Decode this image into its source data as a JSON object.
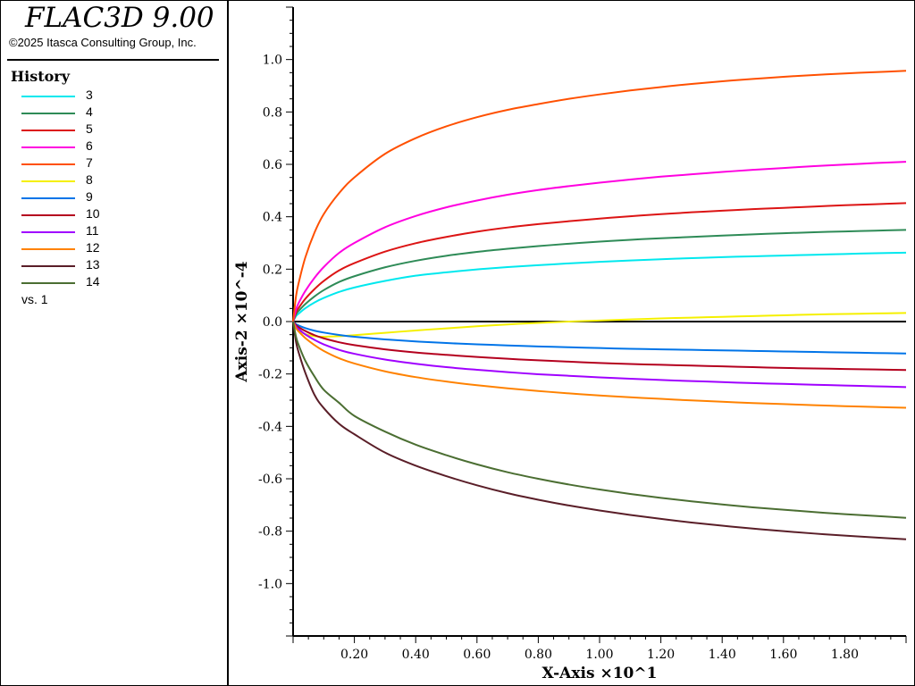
{
  "app": {
    "title": "FLAC3D 9.00",
    "copyright": "©2025 Itasca Consulting Group, Inc."
  },
  "legend": {
    "title": "History",
    "vs_label": "vs. 1"
  },
  "chart_data": {
    "type": "line",
    "xlabel": "X-Axis ×10^1",
    "ylabel": "Axis-2 ×10^-4",
    "xlim": [
      0,
      2.0
    ],
    "ylim": [
      -1.2,
      1.2
    ],
    "x_ticks": [
      "0.20",
      "0.40",
      "0.60",
      "0.80",
      "1.00",
      "1.20",
      "1.40",
      "1.60",
      "1.80"
    ],
    "y_ticks": [
      "1.0",
      "0.8",
      "0.6",
      "0.4",
      "0.2",
      "0.0",
      "-0.2",
      "-0.4",
      "-0.6",
      "-0.8",
      "-1.0"
    ],
    "x": [
      0,
      0.01,
      0.02,
      0.04,
      0.07,
      0.1,
      0.15,
      0.2,
      0.3,
      0.4,
      0.5,
      0.6,
      0.7,
      0.8,
      0.9,
      1.0,
      1.1,
      1.2,
      1.3,
      1.4,
      1.5,
      1.6,
      1.7,
      1.8,
      1.9,
      2.0
    ],
    "series": [
      {
        "name": "3",
        "color": "#00e8ee",
        "values": [
          0,
          0.021,
          0.032,
          0.051,
          0.073,
          0.09,
          0.113,
          0.13,
          0.155,
          0.175,
          0.188,
          0.199,
          0.208,
          0.215,
          0.222,
          0.228,
          0.233,
          0.238,
          0.242,
          0.246,
          0.249,
          0.252,
          0.255,
          0.258,
          0.261,
          0.263
        ]
      },
      {
        "name": "4",
        "color": "#2e8b57",
        "values": [
          0,
          0.028,
          0.043,
          0.067,
          0.096,
          0.12,
          0.151,
          0.173,
          0.207,
          0.232,
          0.251,
          0.266,
          0.278,
          0.288,
          0.297,
          0.305,
          0.312,
          0.318,
          0.323,
          0.328,
          0.333,
          0.337,
          0.341,
          0.344,
          0.347,
          0.35
        ]
      },
      {
        "name": "5",
        "color": "#dc1414",
        "values": [
          0,
          0.036,
          0.055,
          0.087,
          0.124,
          0.155,
          0.195,
          0.223,
          0.267,
          0.299,
          0.323,
          0.343,
          0.359,
          0.372,
          0.383,
          0.393,
          0.402,
          0.41,
          0.417,
          0.423,
          0.429,
          0.434,
          0.439,
          0.444,
          0.448,
          0.452
        ]
      },
      {
        "name": "6",
        "color": "#ff00e0",
        "values": [
          0,
          0.048,
          0.075,
          0.117,
          0.167,
          0.208,
          0.262,
          0.3,
          0.36,
          0.403,
          0.436,
          0.462,
          0.484,
          0.502,
          0.517,
          0.53,
          0.542,
          0.553,
          0.562,
          0.571,
          0.579,
          0.586,
          0.593,
          0.599,
          0.605,
          0.61
        ]
      },
      {
        "name": "7",
        "color": "#ff5000",
        "values": [
          0,
          0.1,
          0.156,
          0.245,
          0.34,
          0.41,
          0.49,
          0.55,
          0.64,
          0.7,
          0.745,
          0.78,
          0.808,
          0.83,
          0.85,
          0.867,
          0.882,
          0.895,
          0.907,
          0.917,
          0.926,
          0.934,
          0.941,
          0.947,
          0.952,
          0.957
        ]
      },
      {
        "name": "8",
        "color": "#f5f000",
        "values": [
          0,
          -0.02,
          -0.035,
          -0.048,
          -0.056,
          -0.058,
          -0.056,
          -0.052,
          -0.043,
          -0.034,
          -0.026,
          -0.018,
          -0.011,
          -0.005,
          0.0,
          0.004,
          0.008,
          0.012,
          0.015,
          0.018,
          0.021,
          0.024,
          0.027,
          0.029,
          0.031,
          0.033
        ]
      },
      {
        "name": "9",
        "color": "#0074e8",
        "values": [
          0,
          -0.01,
          -0.016,
          -0.025,
          -0.035,
          -0.042,
          -0.051,
          -0.058,
          -0.068,
          -0.076,
          -0.082,
          -0.087,
          -0.091,
          -0.095,
          -0.098,
          -0.101,
          -0.104,
          -0.106,
          -0.108,
          -0.11,
          -0.112,
          -0.114,
          -0.116,
          -0.118,
          -0.12,
          -0.122
        ]
      },
      {
        "name": "10",
        "color": "#b4001e",
        "values": [
          0,
          -0.014,
          -0.023,
          -0.036,
          -0.052,
          -0.064,
          -0.079,
          -0.09,
          -0.106,
          -0.118,
          -0.127,
          -0.135,
          -0.142,
          -0.148,
          -0.153,
          -0.158,
          -0.162,
          -0.165,
          -0.168,
          -0.171,
          -0.174,
          -0.177,
          -0.179,
          -0.181,
          -0.183,
          -0.185
        ]
      },
      {
        "name": "11",
        "color": "#a000ff",
        "values": [
          0,
          -0.02,
          -0.031,
          -0.049,
          -0.07,
          -0.087,
          -0.108,
          -0.123,
          -0.145,
          -0.161,
          -0.174,
          -0.184,
          -0.193,
          -0.201,
          -0.207,
          -0.213,
          -0.218,
          -0.223,
          -0.227,
          -0.231,
          -0.235,
          -0.238,
          -0.241,
          -0.244,
          -0.247,
          -0.25
        ]
      },
      {
        "name": "12",
        "color": "#ff8200",
        "values": [
          0,
          -0.026,
          -0.04,
          -0.063,
          -0.09,
          -0.112,
          -0.14,
          -0.16,
          -0.19,
          -0.212,
          -0.229,
          -0.243,
          -0.255,
          -0.265,
          -0.274,
          -0.282,
          -0.289,
          -0.295,
          -0.301,
          -0.306,
          -0.311,
          -0.315,
          -0.319,
          -0.323,
          -0.326,
          -0.329
        ]
      },
      {
        "name": "13",
        "color": "#5a1e28",
        "values": [
          0,
          -0.08,
          -0.125,
          -0.196,
          -0.28,
          -0.33,
          -0.39,
          -0.43,
          -0.5,
          -0.55,
          -0.59,
          -0.625,
          -0.655,
          -0.68,
          -0.702,
          -0.721,
          -0.738,
          -0.753,
          -0.767,
          -0.779,
          -0.79,
          -0.8,
          -0.809,
          -0.817,
          -0.824,
          -0.831
        ]
      },
      {
        "name": "14",
        "color": "#4b6e32",
        "values": [
          0,
          -0.06,
          -0.095,
          -0.15,
          -0.21,
          -0.26,
          -0.31,
          -0.36,
          -0.42,
          -0.47,
          -0.51,
          -0.545,
          -0.575,
          -0.6,
          -0.622,
          -0.641,
          -0.658,
          -0.673,
          -0.686,
          -0.698,
          -0.709,
          -0.718,
          -0.727,
          -0.735,
          -0.742,
          -0.749
        ]
      }
    ]
  }
}
